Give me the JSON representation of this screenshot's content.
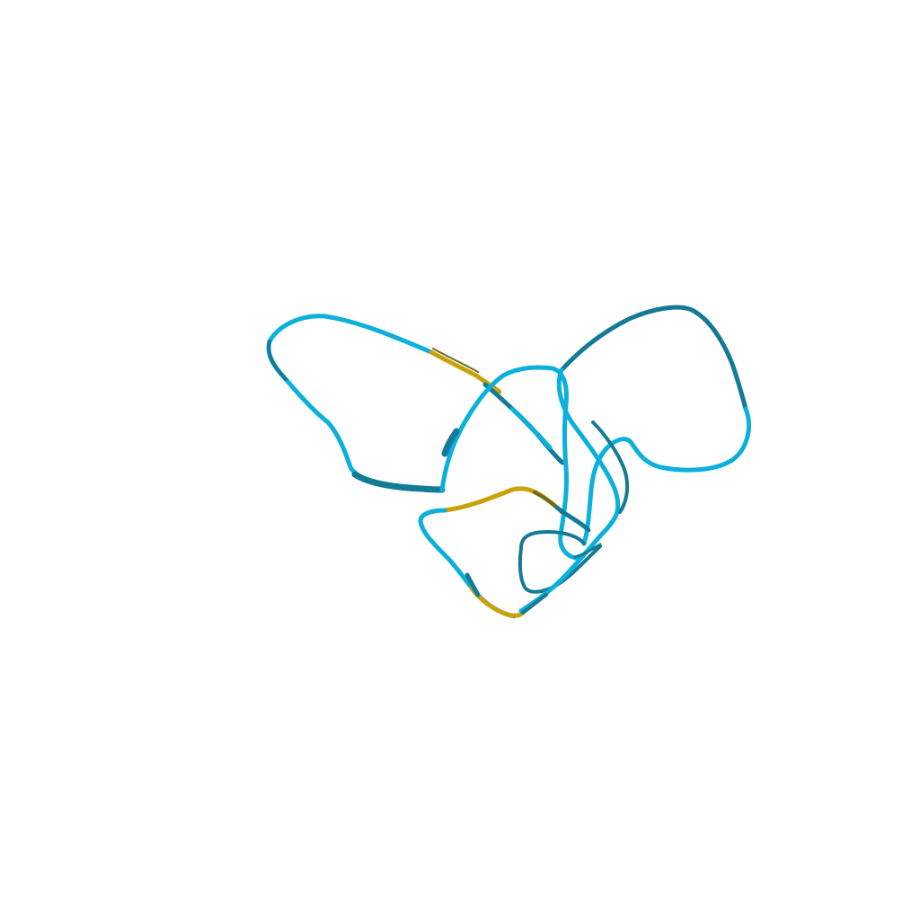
{
  "scene": {
    "background": "#ffffff",
    "colors": {
      "coil_light": "#0BB0DC",
      "coil_dark": "#147A96",
      "strand": "#C9A20A",
      "strand_dark": "#6E6A1E"
    }
  }
}
